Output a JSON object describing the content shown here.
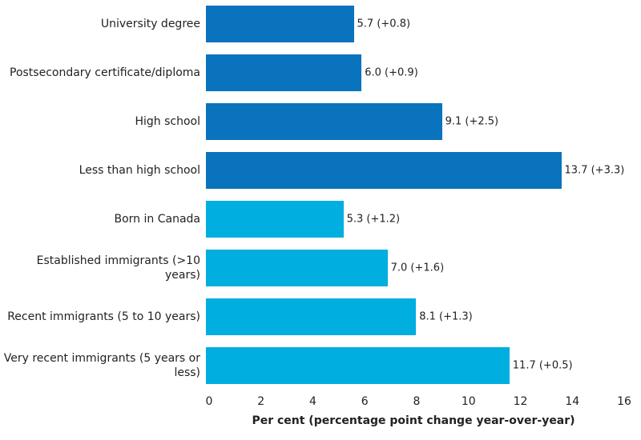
{
  "chart_data": {
    "type": "bar",
    "orientation": "horizontal",
    "x_label": "Per cent (percentage point change year-over-year)",
    "categories": [
      "University degree",
      "Postsecondary certificate/diploma",
      "High school",
      "Less than high school",
      "Born in Canada",
      "Established immigrants (>10 years)",
      "Recent immigrants (5 to 10 years)",
      "Very recent immigrants (5 years or less)"
    ],
    "values": [
      5.7,
      6.0,
      9.1,
      13.7,
      5.3,
      7.0,
      8.1,
      11.7
    ],
    "value_labels": [
      "5.7 (+0.8)",
      "6.0 (+0.9)",
      "9.1 (+2.5)",
      "13.7 (+3.3)",
      "5.3 (+1.2)",
      "7.0 (+1.6)",
      "8.1 (+1.3)",
      "11.7 (+0.5)"
    ],
    "colors": [
      "#0a73bd",
      "#0a73bd",
      "#0a73bd",
      "#0a73bd",
      "#00aee0",
      "#00aee0",
      "#00aee0",
      "#00aee0"
    ],
    "xlim": [
      0,
      16
    ],
    "xticks": [
      0,
      2,
      4,
      6,
      8,
      10,
      12,
      14,
      16
    ]
  }
}
